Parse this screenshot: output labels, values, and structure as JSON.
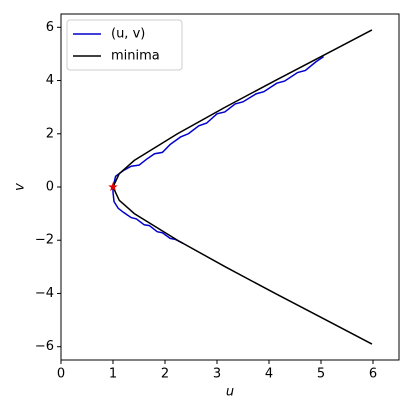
{
  "chart_data": {
    "type": "line",
    "xlabel": "u",
    "ylabel": "v",
    "xlim": [
      0,
      6.5
    ],
    "ylim": [
      -6.5,
      6.5
    ],
    "xticks": [
      0,
      1,
      2,
      3,
      4,
      5,
      6
    ],
    "yticks": [
      {
        "value": -6,
        "label": "−6"
      },
      {
        "value": -4,
        "label": "−4"
      },
      {
        "value": -2,
        "label": "−2"
      },
      0,
      2,
      4,
      6
    ],
    "legend": "upper left",
    "series": [
      {
        "name": "(u, v)",
        "color": "#0000cc",
        "x": [
          2.35,
          2.2,
          2.1,
          1.95,
          1.85,
          1.7,
          1.6,
          1.45,
          1.35,
          1.2,
          1.1,
          1.02,
          1.0,
          1.0,
          1.05,
          1.2,
          1.35,
          1.5,
          1.65,
          1.8,
          1.95,
          2.1,
          2.3,
          2.45,
          2.65,
          2.8,
          3.0,
          3.15,
          3.35,
          3.5,
          3.75,
          3.9,
          4.15,
          4.3,
          4.55,
          4.7,
          4.9,
          5.05
        ],
        "values": [
          -2.12,
          -1.97,
          -1.93,
          -1.72,
          -1.68,
          -1.45,
          -1.42,
          -1.2,
          -1.15,
          -0.95,
          -0.8,
          -0.55,
          -0.2,
          0.0,
          0.4,
          0.62,
          0.78,
          0.82,
          1.05,
          1.25,
          1.3,
          1.6,
          1.88,
          2.0,
          2.3,
          2.4,
          2.75,
          2.82,
          3.12,
          3.2,
          3.5,
          3.58,
          3.9,
          3.98,
          4.3,
          4.38,
          4.7,
          4.9
        ]
      },
      {
        "name": "minima",
        "color": "#000000",
        "x": [
          5.98,
          5.1,
          4.12,
          3.16,
          2.24,
          1.41,
          1.12,
          1.0,
          1.12,
          1.41,
          2.24,
          3.16,
          4.12,
          5.1,
          5.98
        ],
        "values": [
          -5.9,
          -5.0,
          -4.0,
          -3.0,
          -2.0,
          -1.0,
          -0.5,
          0.0,
          0.5,
          1.0,
          2.0,
          3.0,
          4.0,
          5.0,
          5.9
        ]
      }
    ],
    "marker": {
      "x": 1,
      "y": 0,
      "color": "#e00000"
    }
  }
}
